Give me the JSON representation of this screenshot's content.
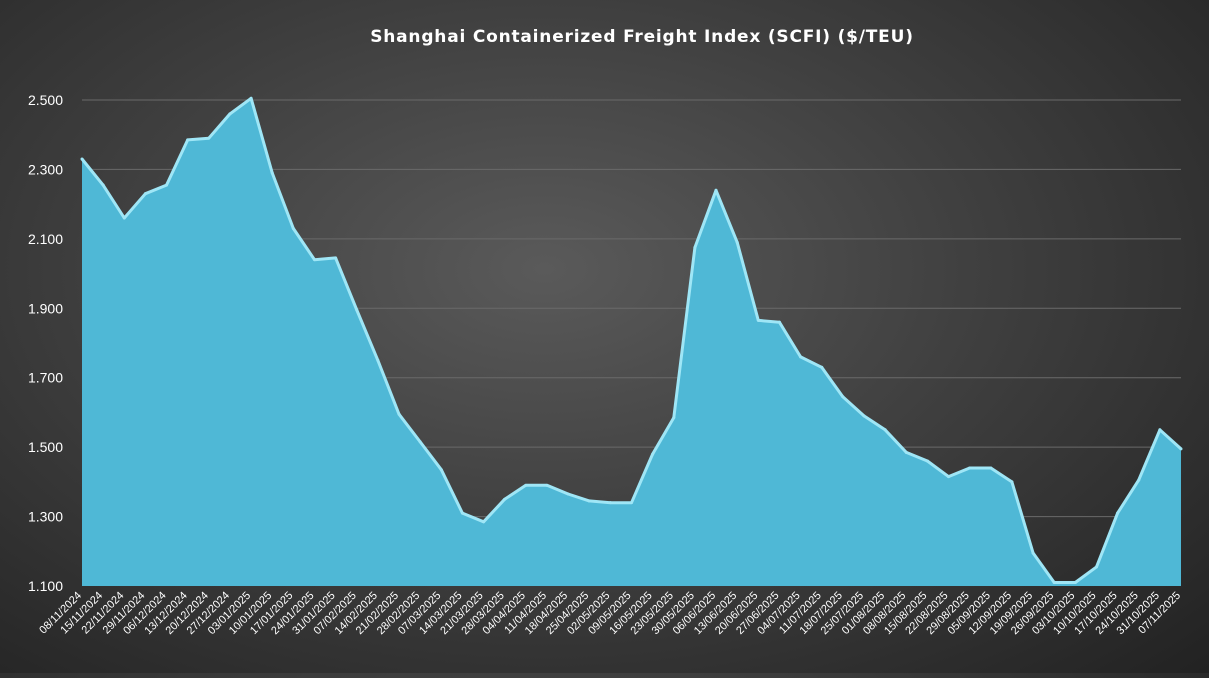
{
  "chart_data": {
    "type": "area",
    "title": "Shanghai Containerized Freight Index (SCFI) ($/TEU)",
    "xlabel": "",
    "ylabel": "",
    "ylim": [
      1100,
      2600
    ],
    "yticks": [
      1100,
      1300,
      1500,
      1700,
      1900,
      2100,
      2300,
      2500
    ],
    "ytick_labels": [
      "1.100",
      "1.300",
      "1.500",
      "1.700",
      "1.900",
      "2.100",
      "2.300",
      "2.500"
    ],
    "grid": true,
    "legend": "none",
    "colors": {
      "area_fill": "#4fb8d6",
      "area_edge": "#9fe6f6",
      "grid": "#6a6a6a",
      "text": "#ffffff"
    },
    "x": [
      "08/11/2024",
      "15/11/2024",
      "22/11/2024",
      "29/11/2024",
      "06/12/2024",
      "13/12/2024",
      "20/12/2024",
      "27/12/2024",
      "03/01/2025",
      "10/01/2025",
      "17/01/2025",
      "24/01/2025",
      "31/01/2025",
      "07/02/2025",
      "14/02/2025",
      "21/02/2025",
      "28/02/2025",
      "07/03/2025",
      "14/03/2025",
      "21/03/2025",
      "28/03/2025",
      "04/04/2025",
      "11/04/2025",
      "18/04/2025",
      "25/04/2025",
      "02/05/2025",
      "09/05/2025",
      "16/05/2025",
      "23/05/2025",
      "30/05/2025",
      "06/06/2025",
      "13/06/2025",
      "20/06/2025",
      "27/06/2025",
      "04/07/2025",
      "11/07/2025",
      "18/07/2025",
      "25/07/2025",
      "01/08/2025",
      "08/08/2025",
      "15/08/2025",
      "22/08/2025",
      "29/08/2025",
      "05/09/2025",
      "12/09/2025",
      "19/09/2025",
      "26/09/2025",
      "03/10/2025",
      "10/10/2025",
      "17/10/2025",
      "24/10/2025",
      "31/10/2025",
      "07/11/2025"
    ],
    "series": [
      {
        "values": [
          2330,
          2255,
          2160,
          2230,
          2255,
          2385,
          2390,
          2460,
          2505,
          2290,
          2130,
          2040,
          2045,
          1895,
          1750,
          1595,
          1515,
          1435,
          1310,
          1285,
          1350,
          1390,
          1390,
          1365,
          1345,
          1340,
          1340,
          1480,
          1585,
          2075,
          2240,
          2090,
          1865,
          1860,
          1760,
          1730,
          1645,
          1590,
          1550,
          1485,
          1460,
          1415,
          1440,
          1440,
          1400,
          1195,
          1110,
          1110,
          1155,
          1310,
          1405,
          1550,
          1495
        ]
      }
    ]
  }
}
